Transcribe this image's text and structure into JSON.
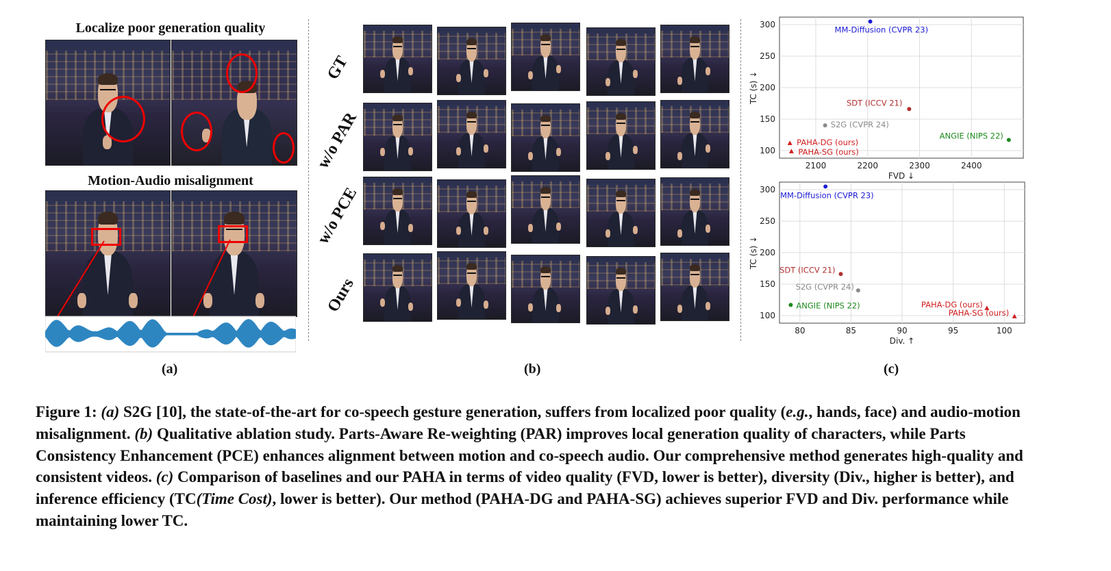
{
  "panel_a": {
    "title_top": "Localize poor generation quality",
    "title_bottom": "Motion-Audio misalignment",
    "label": "(a)"
  },
  "panel_b": {
    "rows": [
      "GT",
      "w/o PAR",
      "w/o PCE",
      "Ours"
    ],
    "label": "(b)"
  },
  "panel_c": {
    "label": "(c)"
  },
  "chart_data": [
    {
      "type": "scatter",
      "xlabel": "FVD",
      "xlabel_arrow": "↓",
      "ylabel": "TC (s)",
      "ylabel_arrow": "↓",
      "xlim": [
        2030,
        2500
      ],
      "ylim": [
        88,
        312
      ],
      "xticks": [
        2100,
        2200,
        2300,
        2400
      ],
      "yticks": [
        100,
        150,
        200,
        250,
        300
      ],
      "grid": true,
      "points": [
        {
          "label": "MM-Diffusion (CVPR 23)",
          "x": 2205,
          "y": 305,
          "color": "#1a1ad6",
          "marker": "circle"
        },
        {
          "label": "SDT (ICCV 21)",
          "x": 2280,
          "y": 166,
          "color": "#b03030",
          "marker": "circle"
        },
        {
          "label": "S2G (CVPR 24)",
          "x": 2118,
          "y": 140,
          "color": "#8a8a8a",
          "marker": "circle"
        },
        {
          "label": "ANGIE (NIPS 22)",
          "x": 2472,
          "y": 117,
          "color": "#1f8a1f",
          "marker": "circle"
        },
        {
          "label": "PAHA-DG (ours)",
          "x": 2050,
          "y": 112,
          "color": "#d02020",
          "marker": "triangle"
        },
        {
          "label": "PAHA-SG (ours)",
          "x": 2053,
          "y": 99,
          "color": "#d02020",
          "marker": "triangle"
        }
      ]
    },
    {
      "type": "scatter",
      "xlabel": "Div.",
      "xlabel_arrow": "↑",
      "ylabel": "TC (s)",
      "ylabel_arrow": "↓",
      "xlim": [
        78,
        102
      ],
      "ylim": [
        88,
        312
      ],
      "xticks": [
        80,
        85,
        90,
        95,
        100
      ],
      "yticks": [
        100,
        150,
        200,
        250,
        300
      ],
      "grid": true,
      "points": [
        {
          "label": "MM-Diffusion (CVPR 23)",
          "x": 82.5,
          "y": 305,
          "color": "#1a1ad6",
          "marker": "circle"
        },
        {
          "label": "SDT (ICCV 21)",
          "x": 84,
          "y": 166,
          "color": "#b03030",
          "marker": "circle"
        },
        {
          "label": "S2G (CVPR 24)",
          "x": 85.7,
          "y": 140,
          "color": "#8a8a8a",
          "marker": "circle"
        },
        {
          "label": "ANGIE (NIPS 22)",
          "x": 79.1,
          "y": 117,
          "color": "#1f8a1f",
          "marker": "circle"
        },
        {
          "label": "PAHA-DG (ours)",
          "x": 98.3,
          "y": 112,
          "color": "#d02020",
          "marker": "triangle"
        },
        {
          "label": "PAHA-SG (ours)",
          "x": 101,
          "y": 99,
          "color": "#d02020",
          "marker": "triangle"
        }
      ]
    }
  ],
  "caption": {
    "fig": "Figure 1:",
    "a_tag": "(a)",
    "a_text": "S2G [10], the state-of-the-art for co-speech gesture generation, suffers from localized poor quality (",
    "eg": "e.g.",
    "a_text2": ", hands, face) and audio-motion misalignment.",
    "b_tag": "(b)",
    "b_text": "Qualitative ablation study. Parts-Aware Re-weighting (PAR) improves local generation quality of characters, while Parts Consistency Enhancement (PCE) enhances alignment between motion and co-speech audio. Our comprehensive method generates high-quality and consistent videos.",
    "c_tag": "(c)",
    "c_text": "Comparison of baselines and our PAHA in terms of video quality (FVD, lower is better), diversity (Div., higher is better), and inference efficiency (TC",
    "tc_italic": "(Time Cost)",
    "c_text2": ", lower is better). Our method (PAHA-DG and PAHA-SG) achieves superior FVD and Div. performance while maintaining lower TC."
  }
}
